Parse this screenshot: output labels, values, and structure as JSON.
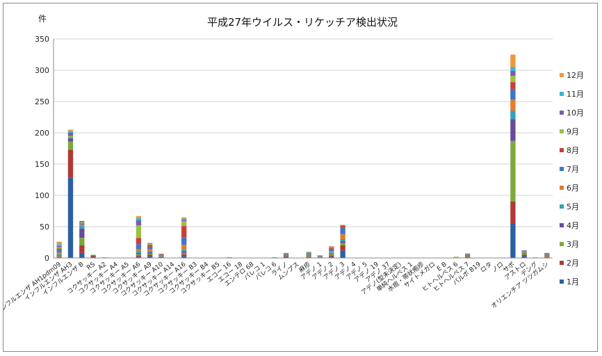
{
  "chart_data": {
    "type": "bar",
    "stacked": true,
    "title": "平成27年ウイルス・リケッチア検出状況",
    "ylabel": "件",
    "xlabel": "",
    "ylim": [
      0,
      350
    ],
    "yticks": [
      0,
      50,
      100,
      150,
      200,
      250,
      300,
      350
    ],
    "grid": true,
    "legend_position": "right",
    "categories": [
      "インフルエンザ AH1pdm09",
      "インフルエンザ AH3",
      "インフルエンザ B",
      "RS",
      "コクサッキー A2",
      "コクサッキー A4",
      "コクサッキー A5",
      "コクサッキー A6",
      "コクサッキー A9",
      "コクサッキー A10",
      "コクサッキー A14",
      "コクサッキー A16",
      "コクサッキー B3",
      "コクサッキー B4",
      "コクサッキー B5",
      "エコー 16",
      "エコー 18",
      "エンテロ 68",
      "パレコ 1",
      "パレコ 6",
      "ライノ",
      "ムンプス",
      "麻疹",
      "アデノ 1",
      "アデノ 2",
      "アデノ 3",
      "アデノ 4",
      "アデノ 5",
      "アデノ 19",
      "アデノ 37",
      "アデノ(型未決定)",
      "単純ヘルペス 1",
      "水痘・帯状疱疹",
      "サイトメガロ",
      "E B",
      "ヒトヘルペス 6",
      "ヒトヘルペス 7",
      "パルボ B19",
      "ロタ",
      "ノロ",
      "サポ",
      "アストロ",
      "デング",
      "オリエンチア ツツガムシ"
    ],
    "series": [
      {
        "name": "1月",
        "color": "#2e5fa3",
        "values": [
          1,
          128,
          8,
          2,
          0,
          0,
          0,
          2,
          3,
          1,
          0,
          3,
          0,
          0,
          0,
          0,
          0,
          0,
          0,
          0,
          2,
          0,
          1,
          0,
          2,
          12,
          0,
          0,
          0,
          0,
          0,
          0,
          0,
          0,
          0,
          0,
          1,
          0,
          0,
          0,
          55,
          3,
          0,
          1
        ]
      },
      {
        "name": "2月",
        "color": "#b03a35",
        "values": [
          1,
          45,
          12,
          2,
          0,
          0,
          0,
          2,
          2,
          1,
          0,
          3,
          0,
          0,
          0,
          0,
          0,
          0,
          0,
          0,
          1,
          0,
          1,
          1,
          2,
          8,
          0,
          0,
          0,
          0,
          0,
          0,
          0,
          0,
          0,
          0,
          1,
          0,
          0,
          0,
          35,
          2,
          0,
          1
        ]
      },
      {
        "name": "3月",
        "color": "#7fa83c",
        "values": [
          1,
          13,
          12,
          1,
          1,
          0,
          0,
          2,
          2,
          0,
          0,
          2,
          0,
          0,
          0,
          0,
          0,
          0,
          0,
          0,
          1,
          0,
          1,
          1,
          2,
          4,
          0,
          0,
          0,
          0,
          0,
          0,
          0,
          0,
          0,
          1,
          1,
          0,
          0,
          0,
          97,
          2,
          0,
          1
        ]
      },
      {
        "name": "4月",
        "color": "#6a4b9a",
        "values": [
          1,
          5,
          15,
          0,
          0,
          0,
          0,
          2,
          2,
          0,
          0,
          2,
          0,
          0,
          0,
          0,
          0,
          0,
          0,
          0,
          1,
          0,
          1,
          0,
          1,
          3,
          0,
          0,
          0,
          0,
          0,
          0,
          0,
          0,
          0,
          0,
          1,
          0,
          0,
          0,
          35,
          1,
          0,
          1
        ]
      },
      {
        "name": "5月",
        "color": "#2fa3b8",
        "values": [
          2,
          2,
          4,
          0,
          0,
          0,
          0,
          3,
          2,
          1,
          0,
          3,
          0,
          0,
          0,
          0,
          0,
          0,
          0,
          1,
          1,
          0,
          1,
          0,
          2,
          3,
          0,
          0,
          0,
          0,
          0,
          0,
          0,
          0,
          0,
          0,
          1,
          0,
          0,
          0,
          13,
          1,
          0,
          1
        ]
      },
      {
        "name": "6月",
        "color": "#e07d2a",
        "values": [
          3,
          0,
          2,
          0,
          0,
          0,
          0,
          3,
          3,
          1,
          0,
          8,
          0,
          0,
          0,
          0,
          0,
          0,
          0,
          0,
          1,
          0,
          1,
          0,
          2,
          8,
          0,
          0,
          0,
          0,
          0,
          0,
          0,
          0,
          0,
          0,
          1,
          0,
          0,
          0,
          18,
          1,
          0,
          1
        ]
      },
      {
        "name": "7月",
        "color": "#3f77c4",
        "values": [
          4,
          0,
          1,
          0,
          0,
          0,
          0,
          8,
          4,
          1,
          0,
          12,
          0,
          0,
          0,
          0,
          0,
          0,
          0,
          0,
          1,
          0,
          1,
          1,
          3,
          10,
          0,
          0,
          0,
          0,
          0,
          0,
          0,
          0,
          0,
          0,
          1,
          0,
          0,
          0,
          16,
          1,
          0,
          1
        ]
      },
      {
        "name": "8月",
        "color": "#c8403b",
        "values": [
          2,
          0,
          1,
          0,
          0,
          0,
          0,
          10,
          3,
          1,
          0,
          18,
          0,
          0,
          0,
          0,
          0,
          0,
          0,
          0,
          0,
          0,
          1,
          1,
          2,
          4,
          0,
          0,
          0,
          0,
          0,
          0,
          0,
          0,
          0,
          0,
          0,
          0,
          0,
          0,
          12,
          0,
          0,
          0
        ]
      },
      {
        "name": "9月",
        "color": "#9bc047",
        "values": [
          2,
          2,
          2,
          0,
          0,
          0,
          0,
          20,
          2,
          1,
          0,
          8,
          0,
          0,
          0,
          0,
          0,
          0,
          0,
          0,
          0,
          0,
          1,
          0,
          1,
          1,
          0,
          0,
          0,
          0,
          0,
          0,
          0,
          0,
          0,
          1,
          0,
          0,
          0,
          0,
          10,
          0,
          1,
          0
        ]
      },
      {
        "name": "10月",
        "color": "#7d5cb0",
        "values": [
          2,
          5,
          2,
          0,
          0,
          0,
          0,
          8,
          1,
          0,
          0,
          2,
          0,
          0,
          0,
          1,
          0,
          0,
          0,
          0,
          0,
          0,
          0,
          0,
          1,
          0,
          0,
          0,
          0,
          0,
          0,
          0,
          0,
          0,
          0,
          0,
          0,
          0,
          0,
          0,
          8,
          1,
          0,
          1
        ]
      },
      {
        "name": "11月",
        "color": "#36b6cf",
        "values": [
          3,
          3,
          0,
          0,
          0,
          0,
          0,
          4,
          0,
          0,
          0,
          2,
          0,
          0,
          0,
          0,
          0,
          0,
          0,
          0,
          0,
          0,
          1,
          0,
          0,
          0,
          0,
          0,
          0,
          0,
          0,
          0,
          0,
          0,
          0,
          0,
          0,
          0,
          0,
          0,
          6,
          0,
          0,
          0
        ]
      },
      {
        "name": "12月",
        "color": "#f0973d",
        "values": [
          4,
          2,
          0,
          0,
          0,
          0,
          0,
          3,
          0,
          0,
          0,
          2,
          0,
          0,
          0,
          0,
          0,
          0,
          0,
          0,
          0,
          0,
          0,
          0,
          1,
          0,
          0,
          0,
          0,
          0,
          0,
          0,
          0,
          0,
          0,
          0,
          0,
          0,
          0,
          0,
          20,
          0,
          0,
          0
        ]
      }
    ]
  }
}
